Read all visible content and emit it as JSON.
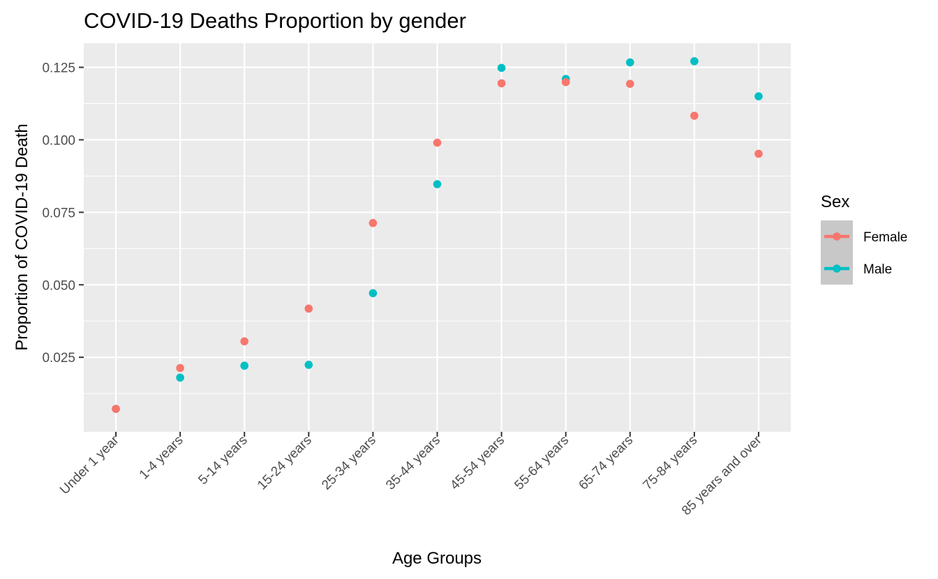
{
  "chart_data": {
    "type": "scatter",
    "title": "COVID-19 Deaths Proportion by gender",
    "xlabel": "Age Groups",
    "ylabel": "Proportion of COVID-19 Death",
    "categories": [
      "Under 1 year",
      "1-4 years",
      "5-14 years",
      "15-24 years",
      "25-34 years",
      "35-44 years",
      "45-54 years",
      "55-64 years",
      "65-74 years",
      "75-84 years",
      "85 years and over"
    ],
    "yticks": [
      "0.025",
      "0.050",
      "0.075",
      "0.100",
      "0.125"
    ],
    "ylim": [
      -0.0007,
      0.1333
    ],
    "grid": true,
    "legend": {
      "title": "Sex",
      "position": "right"
    },
    "series": [
      {
        "name": "Female",
        "color": "#F8766D",
        "values": [
          0.0072,
          0.0213,
          0.0305,
          0.0418,
          0.0713,
          0.099,
          0.1195,
          0.1199,
          0.1193,
          0.1083,
          0.0952
        ]
      },
      {
        "name": "Male",
        "color": "#00BFC4",
        "values": [
          0.0072,
          0.018,
          0.0221,
          0.0224,
          0.0471,
          0.0847,
          0.1248,
          0.121,
          0.1267,
          0.1271,
          0.115
        ]
      }
    ]
  }
}
